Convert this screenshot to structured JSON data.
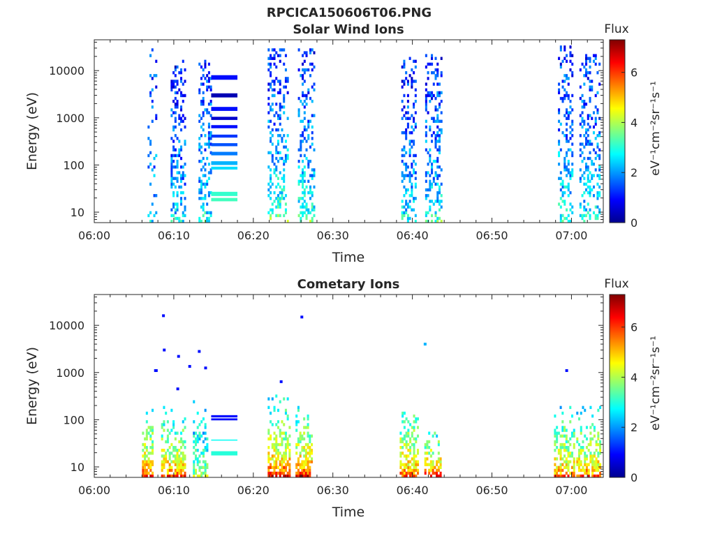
{
  "figure": {
    "title": "RPCICA150606T06.PNG"
  },
  "colormap": [
    "#00008f",
    "#0000ff",
    "#0080ff",
    "#00ffff",
    "#80ff80",
    "#ffff00",
    "#ff8000",
    "#ff0000",
    "#800000"
  ],
  "chart_data": [
    {
      "id": "solar",
      "type": "heatmap",
      "title": "Solar Wind Ions",
      "xlabel": "Time",
      "ylabel": "Energy (eV)",
      "yscale": "log",
      "xlim": [
        0,
        64
      ],
      "ylim": [
        6,
        45000
      ],
      "xticks": [
        {
          "value": 0,
          "label": "06:00"
        },
        {
          "value": 10,
          "label": "06:10"
        },
        {
          "value": 20,
          "label": "06:20"
        },
        {
          "value": 30,
          "label": "06:30"
        },
        {
          "value": 40,
          "label": "06:40"
        },
        {
          "value": 50,
          "label": "06:50"
        },
        {
          "value": 60,
          "label": "07:00"
        }
      ],
      "yticks": [
        {
          "value": 10,
          "label": "10"
        },
        {
          "value": 100,
          "label": "100"
        },
        {
          "value": 1000,
          "label": "1000"
        },
        {
          "value": 10000,
          "label": "10000"
        }
      ],
      "colorbar": {
        "title": "Flux",
        "label": "eV⁻¹cm⁻²sr⁻¹s⁻¹",
        "range": [
          0,
          7.3
        ],
        "ticks": [
          0,
          2,
          4,
          6
        ]
      },
      "blocks": [
        {
          "t0": 14.7,
          "t1": 18.0,
          "e0": 6400,
          "e1": 8000,
          "v": 1.0
        },
        {
          "t0": 14.7,
          "t1": 18.0,
          "e0": 2700,
          "e1": 3300,
          "v": 0.3
        },
        {
          "t0": 14.7,
          "t1": 18.0,
          "e0": 1400,
          "e1": 1700,
          "v": 1.0
        },
        {
          "t0": 14.7,
          "t1": 18.0,
          "e0": 900,
          "e1": 1050,
          "v": 0.5
        },
        {
          "t0": 14.7,
          "t1": 18.0,
          "e0": 600,
          "e1": 700,
          "v": 1.0
        },
        {
          "t0": 14.7,
          "t1": 18.0,
          "e0": 380,
          "e1": 440,
          "v": 1.3
        },
        {
          "t0": 14.7,
          "t1": 18.0,
          "e0": 250,
          "e1": 290,
          "v": 1.5
        },
        {
          "t0": 14.7,
          "t1": 18.0,
          "e0": 160,
          "e1": 190,
          "v": 1.8
        },
        {
          "t0": 14.7,
          "t1": 18.0,
          "e0": 100,
          "e1": 120,
          "v": 2.2
        },
        {
          "t0": 14.7,
          "t1": 18.0,
          "e0": 80,
          "e1": 92,
          "v": 2.5
        },
        {
          "t0": 14.7,
          "t1": 18.0,
          "e0": 22,
          "e1": 27,
          "v": 3.1
        },
        {
          "t0": 14.7,
          "t1": 18.0,
          "e0": 17,
          "e1": 20,
          "v": 3.2
        }
      ],
      "bursts": [
        {
          "t0": 6.7,
          "t1": 7.8,
          "emin": 6,
          "emax": 28000,
          "density": 0.15,
          "lowv": 2.5,
          "highv": 1.2
        },
        {
          "t0": 9.6,
          "t1": 11.4,
          "emin": 6,
          "emax": 16000,
          "density": 0.35,
          "lowv": 2.8,
          "highv": 1.0
        },
        {
          "t0": 13.1,
          "t1": 14.6,
          "emin": 6,
          "emax": 15000,
          "density": 0.35,
          "lowv": 3.0,
          "highv": 1.3
        },
        {
          "t0": 21.8,
          "t1": 24.3,
          "emin": 6,
          "emax": 26000,
          "density": 0.35,
          "lowv": 3.8,
          "highv": 1.1
        },
        {
          "t0": 25.6,
          "t1": 27.6,
          "emin": 6,
          "emax": 28000,
          "density": 0.35,
          "lowv": 3.5,
          "highv": 1.1
        },
        {
          "t0": 38.6,
          "t1": 40.5,
          "emin": 6,
          "emax": 17000,
          "density": 0.35,
          "lowv": 3.0,
          "highv": 1.0
        },
        {
          "t0": 41.6,
          "t1": 43.6,
          "emin": 6,
          "emax": 21000,
          "density": 0.35,
          "lowv": 3.3,
          "highv": 1.0
        },
        {
          "t0": 58.3,
          "t1": 60.2,
          "emin": 6,
          "emax": 33000,
          "density": 0.33,
          "lowv": 3.2,
          "highv": 1.2
        },
        {
          "t0": 61.0,
          "t1": 63.6,
          "emin": 6,
          "emax": 22000,
          "density": 0.35,
          "lowv": 3.1,
          "highv": 1.2
        }
      ]
    },
    {
      "id": "comet",
      "type": "heatmap",
      "title": "Cometary Ions",
      "xlabel": "Time",
      "ylabel": "Energy (eV)",
      "yscale": "log",
      "xlim": [
        0,
        64
      ],
      "ylim": [
        6,
        45000
      ],
      "xticks": [
        {
          "value": 0,
          "label": "06:00"
        },
        {
          "value": 10,
          "label": "06:10"
        },
        {
          "value": 20,
          "label": "06:20"
        },
        {
          "value": 30,
          "label": "06:30"
        },
        {
          "value": 40,
          "label": "06:40"
        },
        {
          "value": 50,
          "label": "06:50"
        },
        {
          "value": 60,
          "label": "07:00"
        }
      ],
      "yticks": [
        {
          "value": 10,
          "label": "10"
        },
        {
          "value": 100,
          "label": "100"
        },
        {
          "value": 1000,
          "label": "1000"
        },
        {
          "value": 10000,
          "label": "10000"
        }
      ],
      "colorbar": {
        "title": "Flux",
        "label": "eV⁻¹cm⁻²sr⁻¹s⁻¹",
        "range": [
          0,
          7.3
        ],
        "ticks": [
          0,
          2,
          4,
          6
        ]
      },
      "blocks": [
        {
          "t0": 14.7,
          "t1": 18.0,
          "e0": 112,
          "e1": 125,
          "v": 1.0
        },
        {
          "t0": 14.7,
          "t1": 18.0,
          "e0": 97,
          "e1": 107,
          "v": 1.0
        },
        {
          "t0": 14.7,
          "t1": 18.0,
          "e0": 36,
          "e1": 38,
          "v": 2.8
        },
        {
          "t0": 14.7,
          "t1": 18.0,
          "e0": 17.5,
          "e1": 21.5,
          "v": 3.0
        }
      ],
      "dots": [
        {
          "t": 8.7,
          "e": 16000,
          "v": 1.0
        },
        {
          "t": 8.8,
          "e": 3000,
          "v": 1.0
        },
        {
          "t": 10.6,
          "e": 2200,
          "v": 1.0
        },
        {
          "t": 13.2,
          "e": 2800,
          "v": 1.0
        },
        {
          "t": 7.7,
          "e": 1100,
          "v": 1.0
        },
        {
          "t": 7.8,
          "e": 1100,
          "v": 1.0
        },
        {
          "t": 12.0,
          "e": 1350,
          "v": 1.0
        },
        {
          "t": 14.0,
          "e": 1250,
          "v": 1.0
        },
        {
          "t": 10.5,
          "e": 450,
          "v": 1.0
        },
        {
          "t": 26.1,
          "e": 15000,
          "v": 1.0
        },
        {
          "t": 23.5,
          "e": 640,
          "v": 1.0
        },
        {
          "t": 41.6,
          "e": 4000,
          "v": 2.2
        },
        {
          "t": 59.4,
          "e": 1100,
          "v": 1.0
        }
      ],
      "bursts": [
        {
          "t0": 6.0,
          "t1": 7.4,
          "emin": 6,
          "emax": 170,
          "density": 0.85,
          "lowv": 6.5,
          "highv": 2.6
        },
        {
          "t0": 8.4,
          "t1": 11.3,
          "emin": 6,
          "emax": 250,
          "density": 0.8,
          "lowv": 6.0,
          "highv": 2.5
        },
        {
          "t0": 12.4,
          "t1": 14.3,
          "emin": 6,
          "emax": 260,
          "density": 0.7,
          "lowv": 4.2,
          "highv": 2.0
        },
        {
          "t0": 21.8,
          "t1": 24.6,
          "emin": 6,
          "emax": 420,
          "density": 0.85,
          "lowv": 6.6,
          "highv": 2.5
        },
        {
          "t0": 25.3,
          "t1": 27.4,
          "emin": 6,
          "emax": 260,
          "density": 0.85,
          "lowv": 6.6,
          "highv": 2.5
        },
        {
          "t0": 38.4,
          "t1": 40.7,
          "emin": 6,
          "emax": 300,
          "density": 0.8,
          "lowv": 6.0,
          "highv": 2.6
        },
        {
          "t0": 41.5,
          "t1": 43.6,
          "emin": 6,
          "emax": 130,
          "density": 0.75,
          "lowv": 6.6,
          "highv": 2.2
        },
        {
          "t0": 57.8,
          "t1": 60.3,
          "emin": 6,
          "emax": 240,
          "density": 0.8,
          "lowv": 5.8,
          "highv": 2.5
        },
        {
          "t0": 60.6,
          "t1": 63.5,
          "emin": 6,
          "emax": 180,
          "density": 0.8,
          "lowv": 6.0,
          "highv": 2.5
        }
      ]
    }
  ]
}
